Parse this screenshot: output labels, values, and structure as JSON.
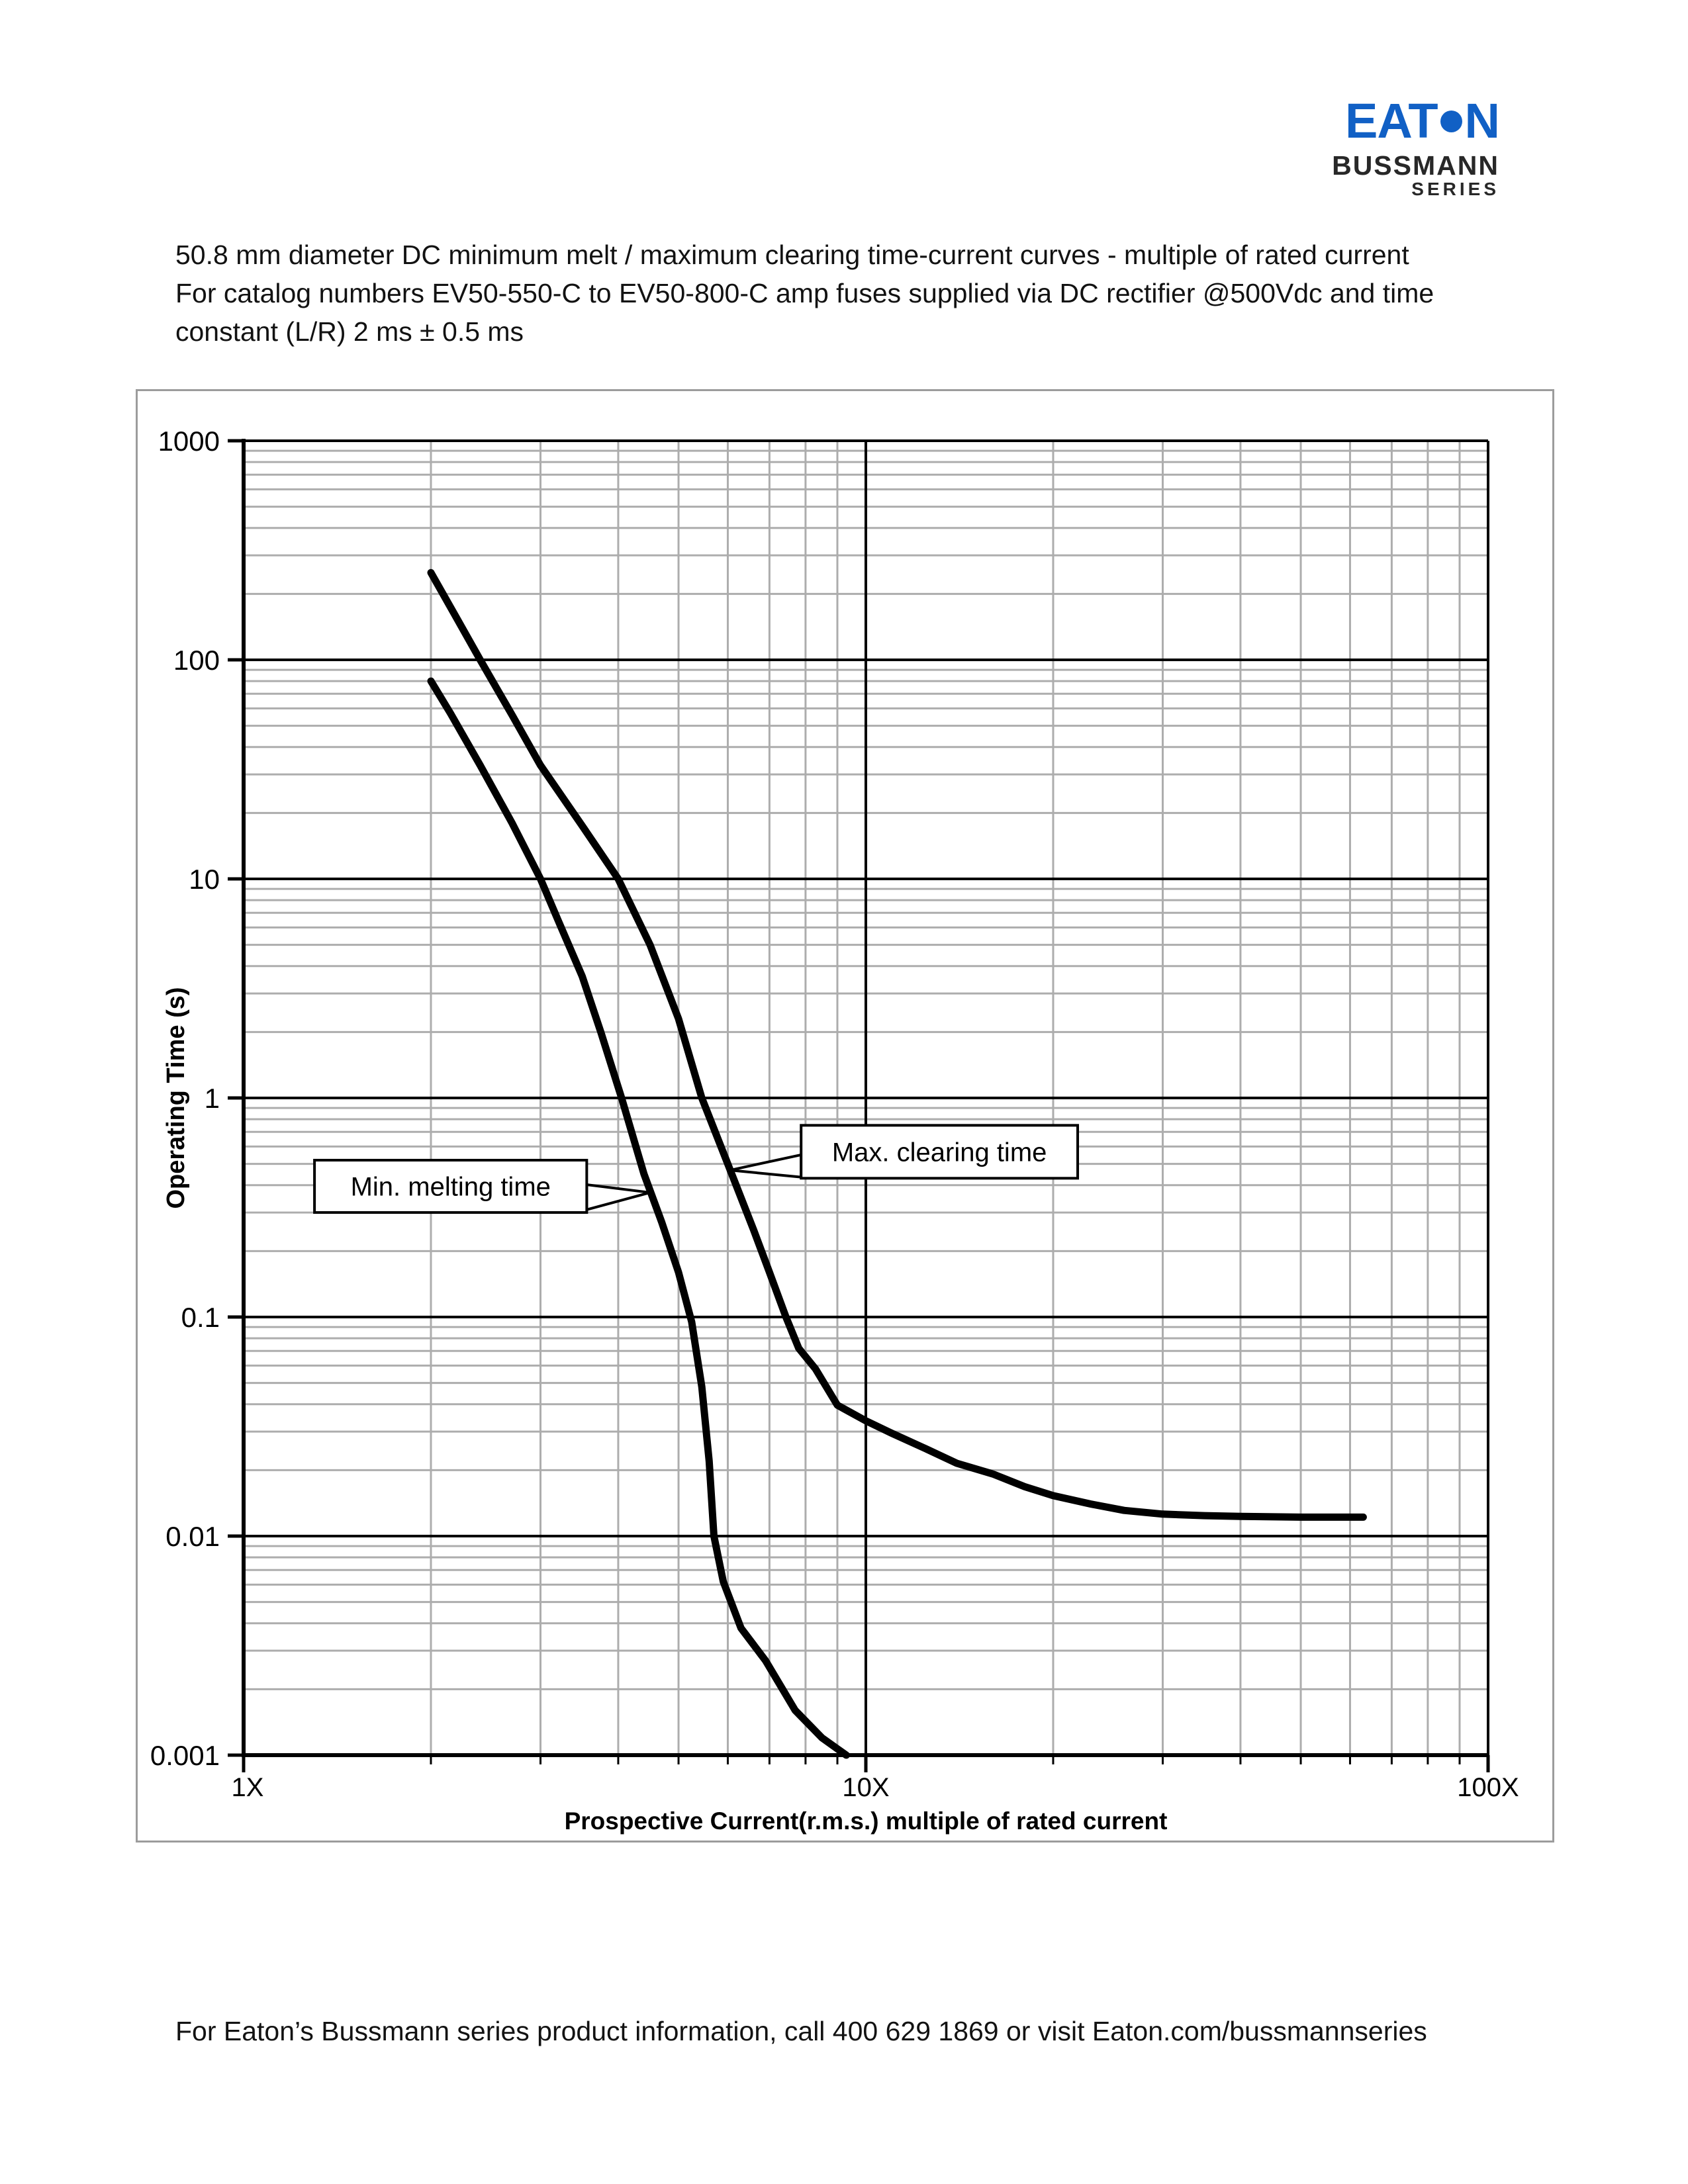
{
  "page": {
    "title_lines": [
      "50.8 mm diameter DC minimum melt / maximum clearing time-current curves - multiple of rated current",
      "For catalog numbers EV50-550-C to EV50-800-C amp fuses supplied via DC rectifier @500Vdc and time",
      "constant (L/R) 2 ms ± 0.5 ms"
    ],
    "footer": "For Eaton’s Bussmann series product information, call 400 629 1869 or visit Eaton.com/bussmannseries"
  },
  "logo": {
    "eaton_prefix": "EAT",
    "eaton_suffix": "N",
    "subtitle": "BUSSMANN",
    "series_label": "SERIES",
    "brand_blue": "#1160C5",
    "brand_dark": "#282828"
  },
  "chart_data": {
    "type": "line",
    "x_scale": "log",
    "y_scale": "log",
    "xlim": [
      1,
      100
    ],
    "ylim": [
      0.001,
      1000
    ],
    "xlabel": "Prospective Current(r.m.s.) multiple of rated current",
    "ylabel": "Operating Time (s)",
    "x_ticks": [
      {
        "v": 1,
        "label": "1X"
      },
      {
        "v": 10,
        "label": "10X"
      },
      {
        "v": 100,
        "label": "100X"
      }
    ],
    "y_ticks": [
      {
        "v": 1000,
        "label": "1000"
      },
      {
        "v": 100,
        "label": "100"
      },
      {
        "v": 10,
        "label": "10"
      },
      {
        "v": 1,
        "label": "1"
      },
      {
        "v": 0.1,
        "label": "0.1"
      },
      {
        "v": 0.01,
        "label": "0.01"
      },
      {
        "v": 0.001,
        "label": "0.001"
      }
    ],
    "grid": {
      "major_color": "#000000",
      "minor_color": "#ADADAD"
    },
    "line_color": "#000000",
    "series": [
      {
        "name": "Min. melting time",
        "points": [
          [
            2.0,
            80
          ],
          [
            2.15,
            57
          ],
          [
            2.4,
            33
          ],
          [
            2.7,
            18
          ],
          [
            3.0,
            10
          ],
          [
            3.2,
            6.5
          ],
          [
            3.5,
            3.6
          ],
          [
            3.75,
            2.0
          ],
          [
            4.05,
            1.0
          ],
          [
            4.4,
            0.45
          ],
          [
            4.7,
            0.27
          ],
          [
            5.0,
            0.16
          ],
          [
            5.25,
            0.095
          ],
          [
            5.45,
            0.048
          ],
          [
            5.6,
            0.022
          ],
          [
            5.7,
            0.01
          ],
          [
            5.9,
            0.0062
          ],
          [
            6.3,
            0.0038
          ],
          [
            6.9,
            0.0027
          ],
          [
            7.7,
            0.0016
          ],
          [
            8.5,
            0.0012
          ],
          [
            9.3,
            0.001
          ]
        ]
      },
      {
        "name": "Max. clearing time",
        "points": [
          [
            2.0,
            250
          ],
          [
            2.2,
            155
          ],
          [
            2.4,
            100
          ],
          [
            2.7,
            56
          ],
          [
            3.0,
            33
          ],
          [
            3.5,
            17.5
          ],
          [
            4.0,
            10
          ],
          [
            4.5,
            5.0
          ],
          [
            5.0,
            2.3
          ],
          [
            5.45,
            1.0
          ],
          [
            6.05,
            0.47
          ],
          [
            6.6,
            0.25
          ],
          [
            7.0,
            0.16
          ],
          [
            7.44,
            0.1
          ],
          [
            7.8,
            0.072
          ],
          [
            8.3,
            0.058
          ],
          [
            9.0,
            0.0396
          ],
          [
            10,
            0.0336
          ],
          [
            11,
            0.0295
          ],
          [
            12.5,
            0.025
          ],
          [
            14,
            0.0215
          ],
          [
            16,
            0.0192
          ],
          [
            18,
            0.0168
          ],
          [
            20,
            0.0153
          ],
          [
            23,
            0.014
          ],
          [
            26,
            0.0131
          ],
          [
            30,
            0.0126
          ],
          [
            35,
            0.0124
          ],
          [
            40,
            0.0123
          ],
          [
            50,
            0.0122
          ],
          [
            63,
            0.0122
          ]
        ]
      }
    ],
    "annotations": [
      {
        "label": "Min. melting time",
        "side": "right",
        "box": {
          "v1": 1.3,
          "v2": 3.56,
          "t_top": 0.52,
          "t_bottom": 0.3
        },
        "tip": {
          "v": 4.5,
          "t": 0.37
        },
        "base": {
          "t1": 0.402,
          "t2": 0.309
        }
      },
      {
        "label": "Max. clearing time",
        "side": "left",
        "box": {
          "v1": 7.87,
          "v2": 21.9,
          "t_top": 0.75,
          "t_bottom": 0.43
        },
        "tip": {
          "v": 6.05,
          "t": 0.468
        },
        "base": {
          "t1": 0.55,
          "t2": 0.435
        }
      }
    ]
  }
}
